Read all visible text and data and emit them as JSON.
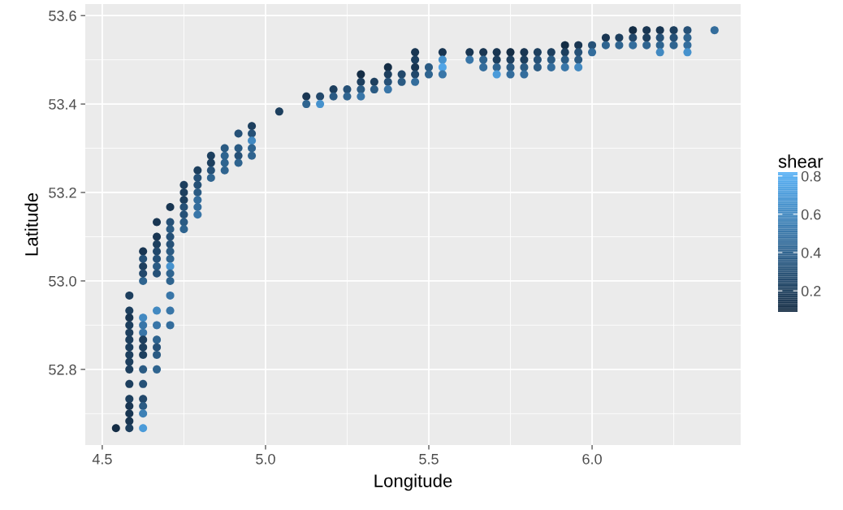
{
  "chart_data": {
    "type": "scatter",
    "xlabel": "Longitude",
    "ylabel": "Latitude",
    "clabel": "shear",
    "xlim": [
      4.448,
      6.455
    ],
    "ylim": [
      52.629,
      53.626
    ],
    "xticks": [
      {
        "value": 4.5,
        "label": "4.5"
      },
      {
        "value": 5.0,
        "label": "5.0"
      },
      {
        "value": 5.5,
        "label": "5.5"
      },
      {
        "value": 6.0,
        "label": "6.0"
      }
    ],
    "yticks": [
      {
        "value": 52.8,
        "label": "52.8"
      },
      {
        "value": 53.0,
        "label": "53.0"
      },
      {
        "value": 53.2,
        "label": "53.2"
      },
      {
        "value": 53.4,
        "label": "53.4"
      },
      {
        "value": 53.6,
        "label": "53.6"
      }
    ],
    "clim": [
      0.09,
      0.82
    ],
    "cticks": [
      0.2,
      0.4,
      0.6,
      0.8
    ],
    "grid": true,
    "marker": "circle",
    "series": [
      {
        "x": [
          4.542,
          4.583,
          4.583,
          4.583,
          4.583,
          4.583,
          4.583,
          4.583,
          4.583,
          4.583,
          4.583,
          4.583,
          4.583,
          4.583,
          4.583,
          4.583,
          4.583,
          4.625,
          4.625,
          4.625,
          4.625,
          4.625,
          4.625,
          4.625,
          4.625,
          4.625,
          4.625,
          4.625,
          4.625,
          4.625,
          4.625,
          4.625,
          4.625,
          4.625,
          4.667,
          4.667,
          4.667,
          4.667,
          4.667,
          4.667,
          4.667,
          4.667,
          4.667,
          4.667,
          4.667,
          4.667,
          4.667,
          4.708,
          4.708,
          4.708,
          4.708,
          4.708,
          4.708,
          4.708,
          4.708,
          4.708,
          4.708,
          4.708,
          4.708,
          4.708,
          4.75,
          4.75,
          4.75,
          4.75,
          4.75,
          4.75,
          4.75,
          4.792,
          4.792,
          4.792,
          4.792,
          4.792,
          4.792,
          4.792,
          4.833,
          4.833,
          4.833,
          4.833,
          4.875,
          4.875,
          4.875,
          4.875,
          4.917,
          4.917,
          4.917,
          4.917,
          4.958,
          4.958,
          4.958,
          4.958,
          4.958,
          5.042,
          5.125,
          5.125,
          5.167,
          5.167,
          5.208,
          5.208,
          5.25,
          5.25,
          5.292,
          5.292,
          5.292,
          5.292,
          5.333,
          5.333,
          5.375,
          5.375,
          5.375,
          5.375,
          5.417,
          5.417,
          5.458,
          5.458,
          5.458,
          5.458,
          5.458,
          5.5,
          5.5,
          5.542,
          5.542,
          5.542,
          5.542,
          5.625,
          5.625,
          5.667,
          5.667,
          5.667,
          5.708,
          5.708,
          5.708,
          5.708,
          5.75,
          5.75,
          5.75,
          5.75,
          5.792,
          5.792,
          5.792,
          5.792,
          5.833,
          5.833,
          5.833,
          5.875,
          5.875,
          5.875,
          5.917,
          5.917,
          5.917,
          5.917,
          5.958,
          5.958,
          5.958,
          5.958,
          6.0,
          6.0,
          6.042,
          6.042,
          6.083,
          6.083,
          6.125,
          6.125,
          6.125,
          6.167,
          6.167,
          6.167,
          6.208,
          6.208,
          6.208,
          6.208,
          6.25,
          6.25,
          6.25,
          6.292,
          6.292,
          6.292,
          6.292,
          6.375
        ],
        "values": [
          52.667,
          52.967,
          52.933,
          52.917,
          52.9,
          52.883,
          52.867,
          52.85,
          52.833,
          52.817,
          52.8,
          52.767,
          52.733,
          52.717,
          52.7,
          52.683,
          52.667,
          53.067,
          53.033,
          53.0,
          52.917,
          52.9,
          52.883,
          52.867,
          52.85,
          52.833,
          52.8,
          52.767,
          52.733,
          52.717,
          52.7,
          52.667,
          53.05,
          53.017,
          53.133,
          53.1,
          53.083,
          53.067,
          53.05,
          53.033,
          53.017,
          52.933,
          52.9,
          52.867,
          52.85,
          52.833,
          52.8,
          53.167,
          53.133,
          53.117,
          53.1,
          53.083,
          53.067,
          53.05,
          53.033,
          53.017,
          53.0,
          52.967,
          52.933,
          52.9,
          53.217,
          53.2,
          53.183,
          53.167,
          53.15,
          53.133,
          53.117,
          53.25,
          53.233,
          53.217,
          53.2,
          53.183,
          53.167,
          53.15,
          53.283,
          53.267,
          53.25,
          53.233,
          53.3,
          53.283,
          53.267,
          53.25,
          53.333,
          53.3,
          53.283,
          53.267,
          53.35,
          53.333,
          53.317,
          53.3,
          53.283,
          53.383,
          53.417,
          53.4,
          53.417,
          53.4,
          53.433,
          53.417,
          53.433,
          53.417,
          53.467,
          53.45,
          53.433,
          53.417,
          53.45,
          53.433,
          53.483,
          53.467,
          53.45,
          53.433,
          53.467,
          53.45,
          53.517,
          53.5,
          53.483,
          53.467,
          53.45,
          53.483,
          53.467,
          53.517,
          53.5,
          53.483,
          53.467,
          53.517,
          53.5,
          53.517,
          53.5,
          53.483,
          53.517,
          53.5,
          53.483,
          53.467,
          53.517,
          53.5,
          53.483,
          53.467,
          53.517,
          53.5,
          53.483,
          53.467,
          53.517,
          53.5,
          53.483,
          53.517,
          53.5,
          53.483,
          53.533,
          53.517,
          53.5,
          53.483,
          53.533,
          53.517,
          53.5,
          53.483,
          53.533,
          53.517,
          53.55,
          53.533,
          53.55,
          53.533,
          53.567,
          53.55,
          53.533,
          53.567,
          53.55,
          53.533,
          53.567,
          53.55,
          53.533,
          53.517,
          53.567,
          53.55,
          53.533,
          53.567,
          53.55,
          53.533,
          53.517,
          53.567
        ],
        "cvalues": [
          0.1,
          0.2,
          0.2,
          0.15,
          0.2,
          0.2,
          0.2,
          0.2,
          0.2,
          0.2,
          0.2,
          0.2,
          0.2,
          0.15,
          0.15,
          0.15,
          0.2,
          0.15,
          0.2,
          0.4,
          0.6,
          0.5,
          0.5,
          0.2,
          0.2,
          0.2,
          0.35,
          0.3,
          0.25,
          0.35,
          0.55,
          0.7,
          0.3,
          0.25,
          0.15,
          0.15,
          0.2,
          0.25,
          0.3,
          0.35,
          0.3,
          0.6,
          0.5,
          0.4,
          0.3,
          0.35,
          0.4,
          0.15,
          0.3,
          0.35,
          0.3,
          0.3,
          0.35,
          0.4,
          0.65,
          0.4,
          0.4,
          0.5,
          0.5,
          0.45,
          0.2,
          0.2,
          0.2,
          0.3,
          0.3,
          0.35,
          0.4,
          0.2,
          0.3,
          0.3,
          0.35,
          0.45,
          0.45,
          0.5,
          0.2,
          0.2,
          0.3,
          0.4,
          0.35,
          0.4,
          0.4,
          0.4,
          0.3,
          0.35,
          0.3,
          0.4,
          0.2,
          0.3,
          0.6,
          0.4,
          0.4,
          0.2,
          0.15,
          0.4,
          0.25,
          0.65,
          0.2,
          0.35,
          0.3,
          0.4,
          0.1,
          0.2,
          0.35,
          0.5,
          0.2,
          0.35,
          0.1,
          0.2,
          0.3,
          0.5,
          0.25,
          0.35,
          0.15,
          0.2,
          0.15,
          0.25,
          0.45,
          0.35,
          0.4,
          0.15,
          0.65,
          0.75,
          0.5,
          0.15,
          0.5,
          0.15,
          0.4,
          0.45,
          0.15,
          0.2,
          0.4,
          0.7,
          0.1,
          0.2,
          0.35,
          0.45,
          0.15,
          0.2,
          0.35,
          0.45,
          0.2,
          0.3,
          0.35,
          0.2,
          0.35,
          0.45,
          0.1,
          0.2,
          0.35,
          0.5,
          0.15,
          0.3,
          0.35,
          0.6,
          0.3,
          0.45,
          0.15,
          0.4,
          0.2,
          0.4,
          0.1,
          0.25,
          0.45,
          0.15,
          0.2,
          0.4,
          0.15,
          0.3,
          0.4,
          0.6,
          0.2,
          0.3,
          0.4,
          0.3,
          0.4,
          0.45,
          0.65,
          0.45
        ]
      }
    ]
  }
}
